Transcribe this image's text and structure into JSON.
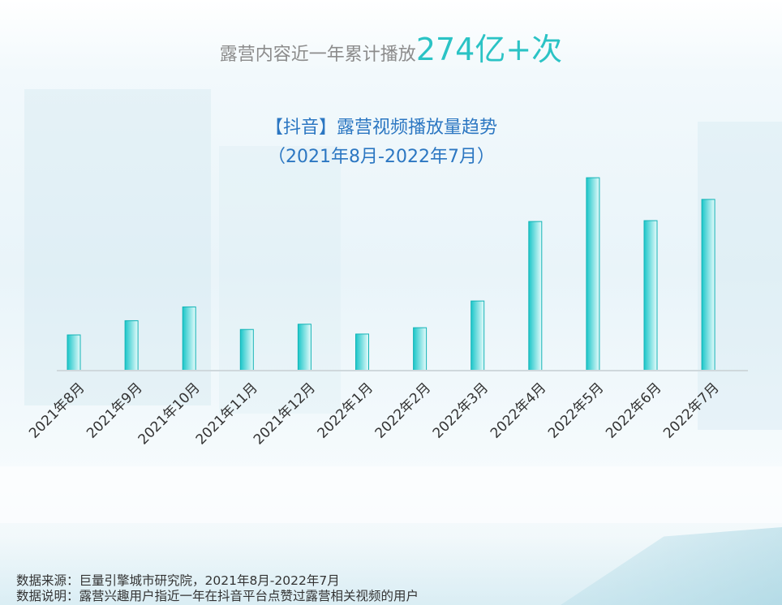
{
  "headline": {
    "prefix": "露营内容近一年累计播放",
    "value": "274亿+次"
  },
  "chart_data": {
    "type": "bar",
    "title": "【抖音】露营视频播放量趋势",
    "subtitle": "（2021年8月-2022年7月）",
    "categories": [
      "2021年8月",
      "2021年9月",
      "2021年10月",
      "2021年11月",
      "2021年12月",
      "2022年1月",
      "2022年2月",
      "2022年3月",
      "2022年4月",
      "2022年5月",
      "2022年6月",
      "2022年7月"
    ],
    "values": [
      16.3,
      22.8,
      29.1,
      18.8,
      21.2,
      16.7,
      19.6,
      31.8,
      68.1,
      88.1,
      68.5,
      78.2
    ],
    "ylim": [
      0,
      100
    ],
    "xlabel": "",
    "ylabel": "",
    "grid": false,
    "colors": {
      "bar_fill_start": "#1bc6c9",
      "bar_fill_end": "#e6fbfb",
      "bar_stroke": "#12b3b6",
      "axis": "#cfd8dc",
      "tick_label": "#333333"
    }
  },
  "footer": {
    "source": "数据来源：巨量引擎城市研究院，2021年8月-2022年7月",
    "note": "数据说明：露营兴趣用户指近一年在抖音平台点赞过露营相关视频的用户"
  }
}
